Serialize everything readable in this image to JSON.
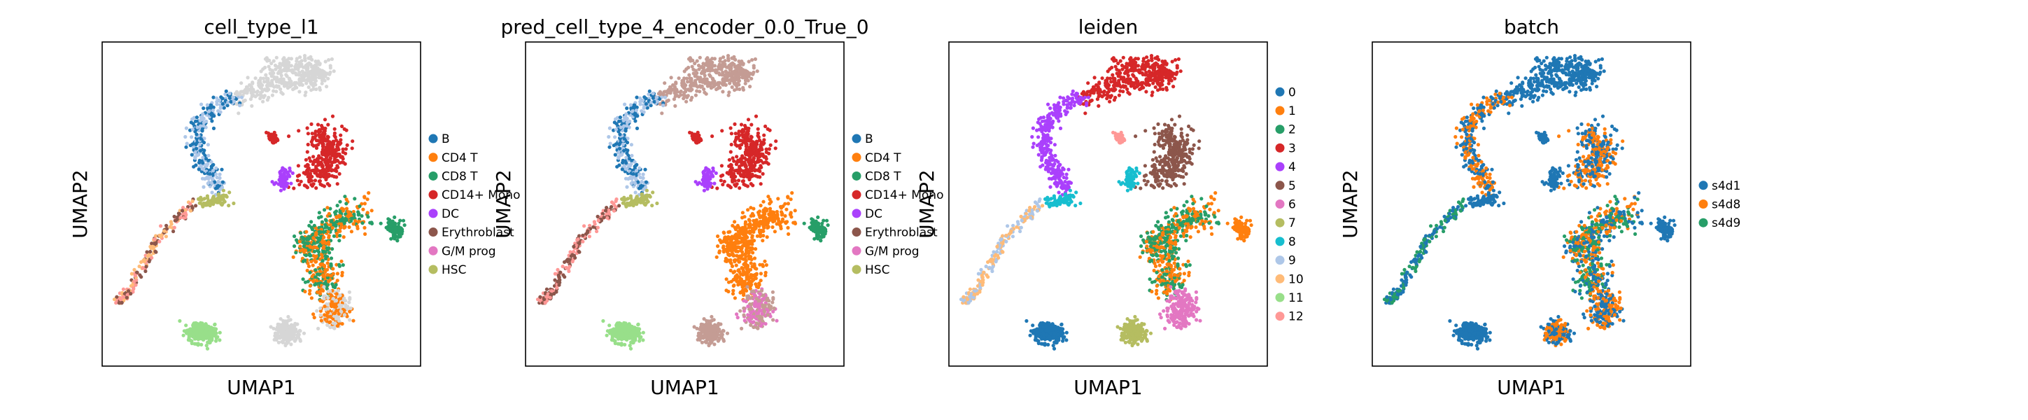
{
  "figure": {
    "type": "scatter",
    "description_free": true
  },
  "chart_data": [
    {
      "type": "scatter",
      "title": "cell_type_l1",
      "xlabel": "UMAP1",
      "ylabel": "UMAP2",
      "grid": false,
      "legend_position": "right",
      "legend": [
        {
          "label": "B",
          "color": "#1f77b4"
        },
        {
          "label": "CD4 T",
          "color": "#ff7f0e"
        },
        {
          "label": "CD8 T",
          "color": "#279e68"
        },
        {
          "label": "CD14+ Mono",
          "color": "#d62728"
        },
        {
          "label": "DC",
          "color": "#aa40fc"
        },
        {
          "label": "Erythroblast",
          "color": "#8c564b"
        },
        {
          "label": "G/M prog",
          "color": "#e377c2"
        },
        {
          "label": "HSC",
          "color": "#b5bd61"
        }
      ]
    },
    {
      "type": "scatter",
      "title": "pred_cell_type_4_encoder_0.0_True_0",
      "xlabel": "UMAP1",
      "ylabel": "UMAP2",
      "grid": false,
      "legend_position": "right",
      "legend": [
        {
          "label": "B",
          "color": "#1f77b4"
        },
        {
          "label": "CD4 T",
          "color": "#ff7f0e"
        },
        {
          "label": "CD8 T",
          "color": "#279e68"
        },
        {
          "label": "CD14+ Mono",
          "color": "#d62728"
        },
        {
          "label": "DC",
          "color": "#aa40fc"
        },
        {
          "label": "Erythroblast",
          "color": "#8c564b"
        },
        {
          "label": "G/M prog",
          "color": "#e377c2"
        },
        {
          "label": "HSC",
          "color": "#b5bd61"
        }
      ]
    },
    {
      "type": "scatter",
      "title": "leiden",
      "xlabel": "UMAP1",
      "ylabel": "UMAP2",
      "grid": false,
      "legend_position": "right",
      "legend": [
        {
          "label": "0",
          "color": "#1f77b4"
        },
        {
          "label": "1",
          "color": "#ff7f0e"
        },
        {
          "label": "2",
          "color": "#279e68"
        },
        {
          "label": "3",
          "color": "#d62728"
        },
        {
          "label": "4",
          "color": "#aa40fc"
        },
        {
          "label": "5",
          "color": "#8c564b"
        },
        {
          "label": "6",
          "color": "#e377c2"
        },
        {
          "label": "7",
          "color": "#b5bd61"
        },
        {
          "label": "8",
          "color": "#17becf"
        },
        {
          "label": "9",
          "color": "#aec7e8"
        },
        {
          "label": "10",
          "color": "#ffbb78"
        },
        {
          "label": "11",
          "color": "#98df8a"
        },
        {
          "label": "12",
          "color": "#ff9896"
        }
      ]
    },
    {
      "type": "scatter",
      "title": "batch",
      "xlabel": "UMAP1",
      "ylabel": "UMAP2",
      "grid": false,
      "legend_position": "right",
      "legend": [
        {
          "label": "s4d1",
          "color": "#1f77b4"
        },
        {
          "label": "s4d8",
          "color": "#ff7f0e"
        },
        {
          "label": "s4d9",
          "color": "#279e68"
        }
      ]
    }
  ]
}
